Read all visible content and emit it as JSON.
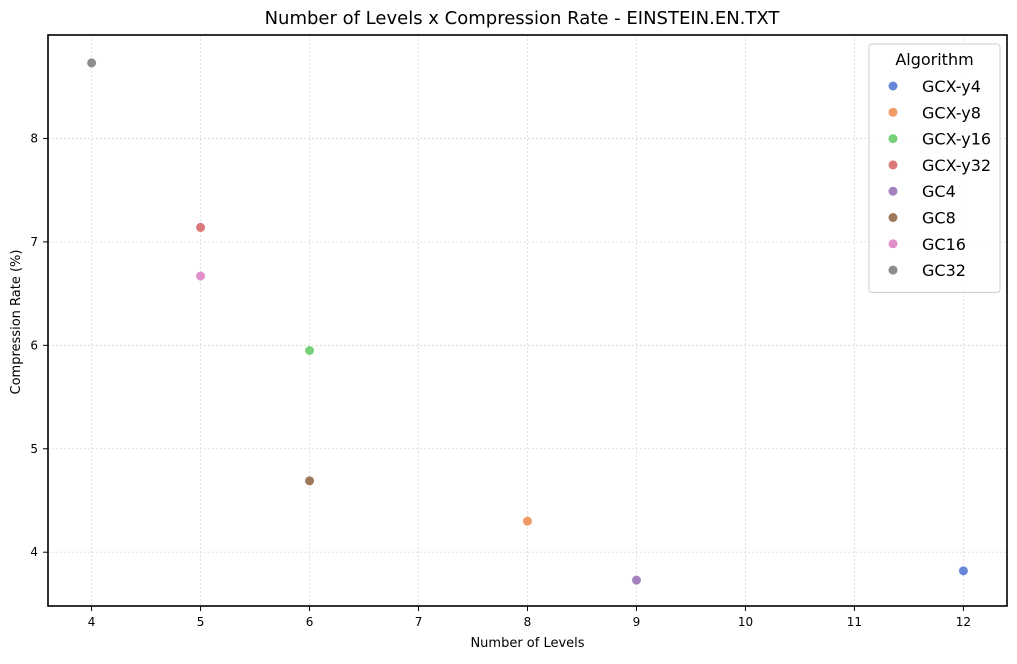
{
  "chart_data": {
    "type": "scatter",
    "title": "Number of Levels x Compression Rate - EINSTEIN.EN.TXT",
    "xlabel": "Number of Levels",
    "ylabel": "Compression Rate (%)",
    "xlim": [
      3.6,
      12.4
    ],
    "ylim": [
      3.48,
      9.0
    ],
    "xticks": [
      4,
      5,
      6,
      7,
      8,
      9,
      10,
      11,
      12
    ],
    "yticks": [
      4,
      5,
      6,
      7,
      8
    ],
    "grid": true,
    "legend_title": "Algorithm",
    "legend_position": "top-right",
    "series": [
      {
        "name": "GCX-y4",
        "color": "#4c72d0",
        "points": [
          {
            "x": 12,
            "y": 3.82
          }
        ]
      },
      {
        "name": "GCX-y8",
        "color": "#f08a4b",
        "points": [
          {
            "x": 8,
            "y": 4.3
          }
        ]
      },
      {
        "name": "GCX-y16",
        "color": "#5fc961",
        "points": [
          {
            "x": 6,
            "y": 5.95
          }
        ]
      },
      {
        "name": "GCX-y32",
        "color": "#d65f5f",
        "points": [
          {
            "x": 5,
            "y": 7.14
          }
        ]
      },
      {
        "name": "GC4",
        "color": "#956cb4",
        "points": [
          {
            "x": 9,
            "y": 3.73
          }
        ]
      },
      {
        "name": "GC8",
        "color": "#8c613c",
        "points": [
          {
            "x": 6,
            "y": 4.69
          }
        ]
      },
      {
        "name": "GC16",
        "color": "#dc7ec0",
        "points": [
          {
            "x": 5,
            "y": 6.67
          }
        ]
      },
      {
        "name": "GC32",
        "color": "#797979",
        "points": [
          {
            "x": 4,
            "y": 8.73
          }
        ]
      }
    ]
  }
}
